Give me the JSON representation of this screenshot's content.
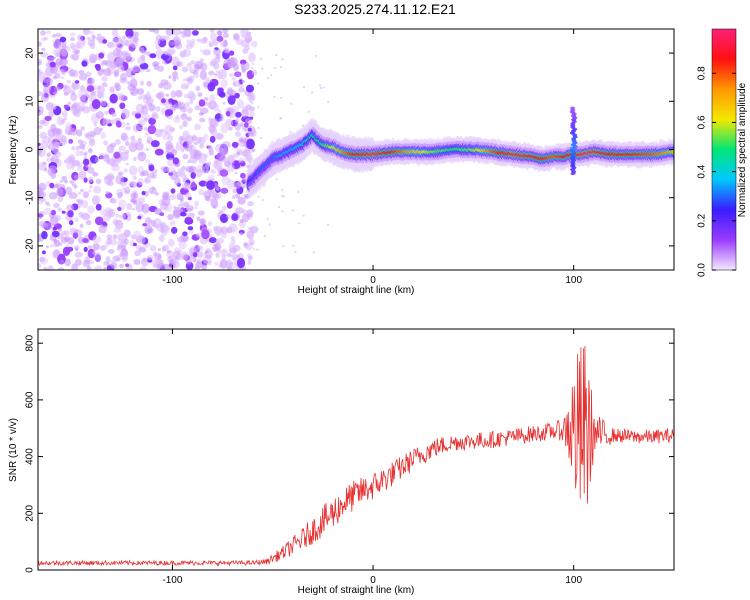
{
  "figure": {
    "title": "S233.2025.274.11.12.E21"
  },
  "chart_data": [
    {
      "type": "heatmap",
      "name": "spectrogram",
      "xlabel": "Height of straight line (km)",
      "ylabel": "Frequency (Hz)",
      "xlim": [
        -167,
        150
      ],
      "ylim": [
        -25,
        25
      ],
      "x_ticks": [
        -100,
        0,
        100
      ],
      "y_ticks": [
        20,
        10,
        0,
        -10,
        -20
      ],
      "y_tick_labels": [
        "20",
        "10",
        "0",
        "-10",
        "-20"
      ],
      "colorbar": {
        "label": "Normalized spectral amplitude",
        "range": [
          0,
          0.98
        ],
        "ticks": [
          0.0,
          0.2,
          0.4,
          0.6,
          0.8
        ],
        "tick_labels": [
          "0.0",
          "0.2",
          "0.4",
          "0.6",
          "0.8"
        ],
        "colors": [
          "#f4e8ff",
          "#9a3cff",
          "#3a1cff",
          "#00c8ff",
          "#00e676",
          "#f5e800",
          "#ff9800",
          "#ff1010",
          "#ff1f7a"
        ]
      },
      "noise_region_x": [
        -167,
        -62
      ],
      "ridge": {
        "x": [
          -62,
          -55,
          -50,
          -45,
          -40,
          -35,
          -30,
          -25,
          -20,
          -15,
          -10,
          -5,
          0,
          10,
          20,
          30,
          40,
          50,
          60,
          70,
          80,
          85,
          90,
          95,
          100,
          105,
          110,
          120,
          130,
          140,
          150
        ],
        "freq": [
          -7,
          -4,
          -2,
          -1,
          0,
          1,
          3,
          1,
          0.5,
          -0.5,
          -1,
          -1,
          -1,
          -0.5,
          -0.5,
          -0.5,
          0,
          0,
          -0.5,
          -1,
          -1.5,
          -2,
          -1.5,
          -1.5,
          -1,
          -1,
          -0.5,
          -1,
          -1,
          -1,
          -0.5
        ],
        "amp": [
          0.25,
          0.3,
          0.3,
          0.35,
          0.35,
          0.4,
          0.45,
          0.5,
          0.6,
          0.75,
          0.85,
          0.9,
          0.95,
          0.85,
          0.7,
          0.55,
          0.5,
          0.55,
          0.8,
          0.95,
          0.9,
          0.85,
          0.8,
          0.85,
          0.9,
          0.95,
          0.95,
          0.85,
          0.85,
          0.8,
          0.7
        ]
      },
      "spike": {
        "x": 100,
        "freq_range": [
          -5,
          9
        ]
      }
    },
    {
      "type": "line",
      "name": "snr",
      "xlabel": "Height of straight line (km)",
      "ylabel": "SNR (10 * v/v)",
      "xlim": [
        -167,
        150
      ],
      "ylim": [
        0,
        850
      ],
      "x_ticks": [
        -100,
        0,
        100
      ],
      "y_ticks": [
        0,
        200,
        400,
        600,
        800
      ],
      "color": "#e83030",
      "envelope": {
        "x": [
          -167,
          -60,
          -53,
          -45,
          -35,
          -25,
          -20,
          -15,
          -10,
          -5,
          0,
          10,
          20,
          30,
          40,
          50,
          60,
          70,
          80,
          90,
          95,
          98,
          100,
          102,
          105,
          107,
          110,
          120,
          130,
          140,
          150
        ],
        "y": [
          25,
          25,
          30,
          60,
          110,
          170,
          200,
          235,
          260,
          280,
          295,
          340,
          390,
          430,
          450,
          455,
          460,
          470,
          480,
          490,
          495,
          500,
          490,
          480,
          480,
          485,
          480,
          475,
          470,
          470,
          475
        ],
        "noise": [
          8,
          8,
          10,
          25,
          40,
          55,
          60,
          55,
          55,
          50,
          50,
          45,
          40,
          35,
          30,
          30,
          30,
          30,
          30,
          30,
          40,
          150,
          250,
          300,
          350,
          300,
          80,
          25,
          25,
          25,
          25
        ]
      }
    }
  ]
}
